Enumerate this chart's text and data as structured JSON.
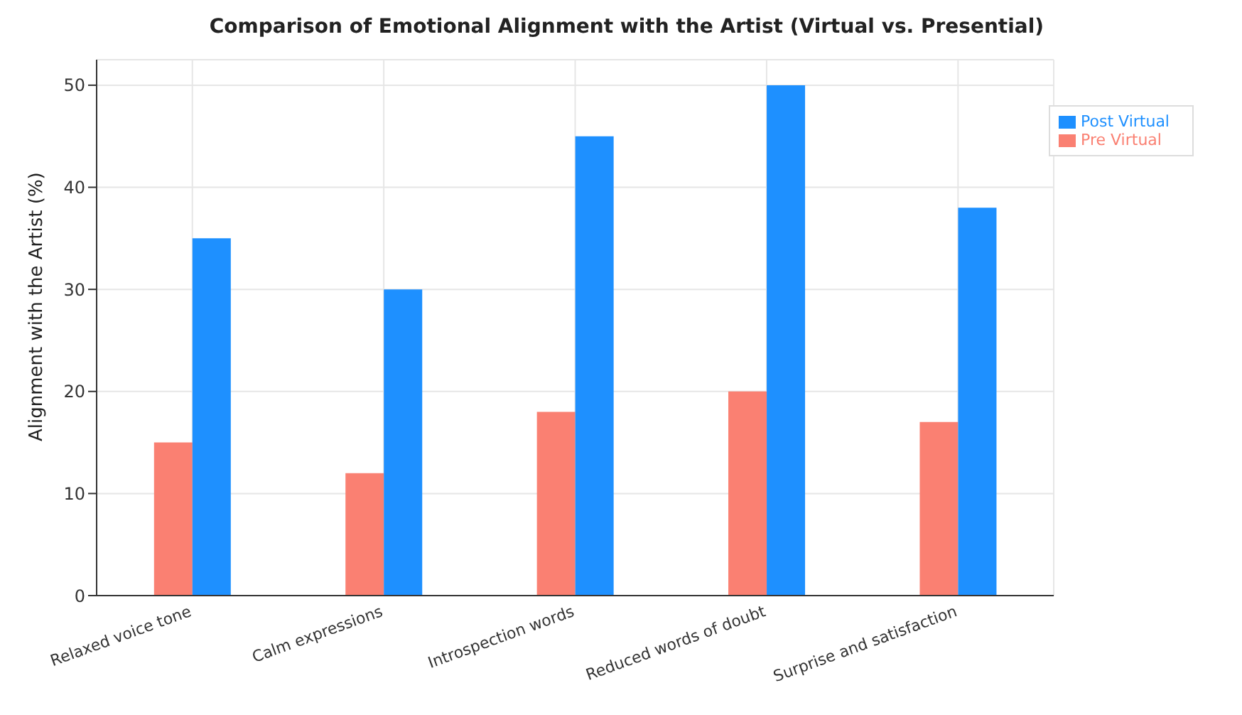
{
  "chart_data": {
    "type": "bar",
    "title": "Comparison of Emotional Alignment with the Artist (Virtual vs. Presential)",
    "ylabel": "Alignment with the Artist (%)",
    "categories": [
      "Relaxed voice tone",
      "Calm expressions",
      "Introspection words",
      "Reduced words of doubt",
      "Surprise and satisfaction"
    ],
    "series": [
      {
        "name": "Pre Virtual",
        "color": "#fa8072",
        "values": [
          15,
          12,
          18,
          20,
          17
        ]
      },
      {
        "name": "Post Virtual",
        "color": "#1e90ff",
        "values": [
          35,
          30,
          45,
          50,
          38
        ]
      }
    ],
    "ylim": [
      0,
      52.5
    ],
    "yticks": [
      0,
      10,
      20,
      30,
      40,
      50
    ],
    "grid": true,
    "legend": "top right"
  }
}
